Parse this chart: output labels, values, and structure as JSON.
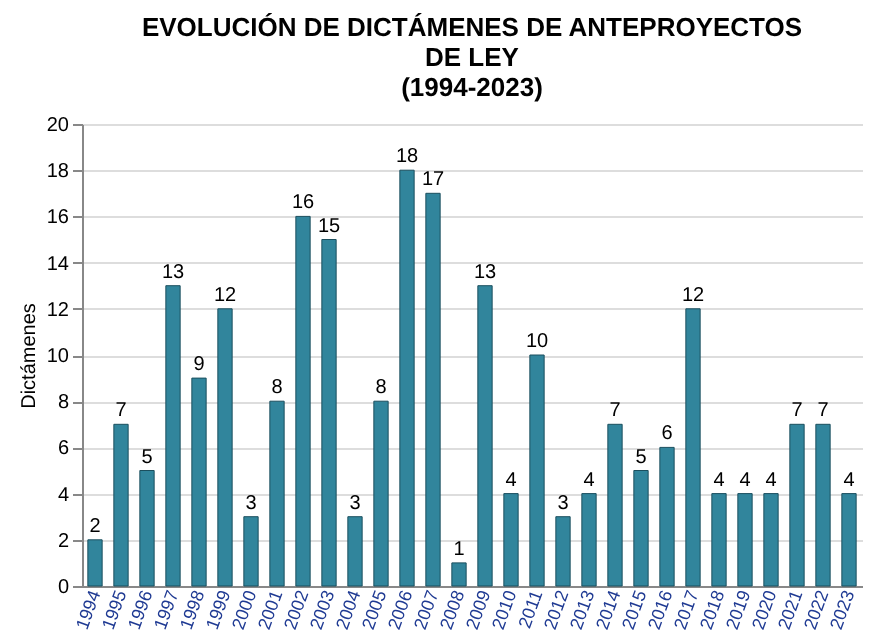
{
  "chart_data": {
    "type": "bar",
    "title": [
      "EVOLUCIÓN DE DICTÁMENES DE ANTEPROYECTOS",
      "DE LEY",
      "(1994-2023)"
    ],
    "ylabel": "Dictámenes",
    "categories": [
      "1994",
      "1995",
      "1996",
      "1997",
      "1998",
      "1999",
      "2000",
      "2001",
      "2002",
      "2003",
      "2004",
      "2005",
      "2006",
      "2007",
      "2008",
      "2009",
      "2010",
      "2011",
      "2012",
      "2013",
      "2014",
      "2015",
      "2016",
      "2017",
      "2018",
      "2019",
      "2020",
      "2021",
      "2022",
      "2023"
    ],
    "values": [
      2,
      7,
      5,
      13,
      9,
      12,
      3,
      8,
      16,
      15,
      3,
      8,
      18,
      17,
      1,
      13,
      4,
      10,
      3,
      4,
      7,
      5,
      6,
      12,
      4,
      4,
      4,
      7,
      7,
      4
    ],
    "color": "#31859c",
    "ylim": [
      0,
      20
    ],
    "yticks": [
      0,
      2,
      4,
      6,
      8,
      10,
      12,
      14,
      16,
      18,
      20
    ],
    "grid": "y",
    "data_labels": true
  }
}
